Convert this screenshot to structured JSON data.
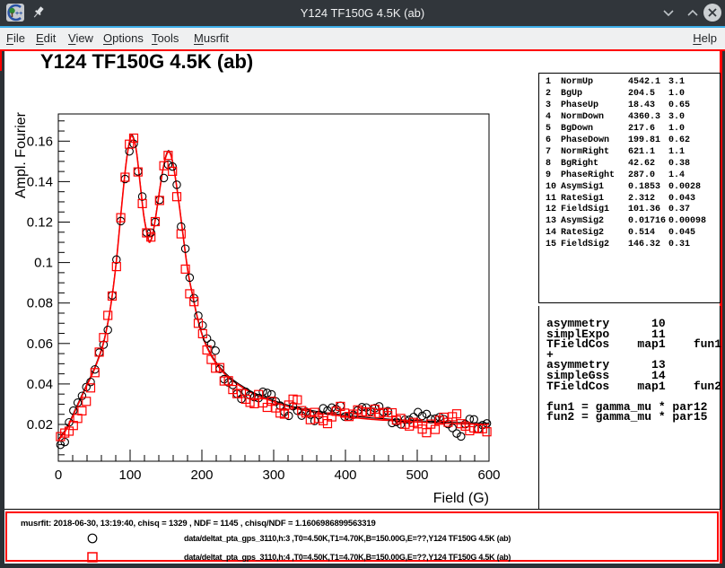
{
  "window": {
    "title": "Y124 TF150G 4.5K (ab)"
  },
  "menu": {
    "items": [
      "File",
      "Edit",
      "View",
      "Options",
      "Tools",
      "Musrfit"
    ],
    "right_item": "Help"
  },
  "plot": {
    "title": "Y124 TF150G 4.5K (ab)",
    "xlabel": "Field (G)",
    "ylabel": "Ampl. Fourier"
  },
  "chart_data": {
    "type": "scatter",
    "title": "Y124 TF150G 4.5K (ab)",
    "xlabel": "Field (G)",
    "ylabel": "Ampl. Fourier",
    "xlim": [
      0,
      600
    ],
    "ylim": [
      0.0016,
      0.1734
    ],
    "x_ticks": [
      0,
      100,
      200,
      300,
      400,
      500,
      600
    ],
    "y_ticks": [
      0.02,
      0.04,
      0.06,
      0.08,
      0.1,
      0.12,
      0.14,
      0.16
    ],
    "x_minor_step": 20,
    "y_minor_step": 0.005,
    "grid": false,
    "fit_color": "#ff0000",
    "fit_curve": [
      [
        0,
        0.012
      ],
      [
        12,
        0.018
      ],
      [
        25,
        0.028
      ],
      [
        38,
        0.038
      ],
      [
        50,
        0.047
      ],
      [
        62,
        0.059
      ],
      [
        70,
        0.072
      ],
      [
        75,
        0.0834
      ],
      [
        81,
        0.1011
      ],
      [
        87,
        0.1233
      ],
      [
        94,
        0.1477
      ],
      [
        100,
        0.161
      ],
      [
        104,
        0.1619
      ],
      [
        109,
        0.1544
      ],
      [
        114,
        0.1388
      ],
      [
        119,
        0.1233
      ],
      [
        124,
        0.1136
      ],
      [
        127,
        0.11
      ],
      [
        131,
        0.1131
      ],
      [
        136,
        0.1233
      ],
      [
        141,
        0.1353
      ],
      [
        146,
        0.1464
      ],
      [
        151,
        0.1535
      ],
      [
        155,
        0.1544
      ],
      [
        159,
        0.15
      ],
      [
        164,
        0.1397
      ],
      [
        169,
        0.1269
      ],
      [
        175,
        0.11
      ],
      [
        181,
        0.0945
      ],
      [
        188,
        0.0821
      ],
      [
        194,
        0.0723
      ],
      [
        201,
        0.0635
      ],
      [
        210,
        0.0559
      ],
      [
        219,
        0.0506
      ],
      [
        231,
        0.0453
      ],
      [
        244,
        0.0413
      ],
      [
        259,
        0.0377
      ],
      [
        275,
        0.0346
      ],
      [
        294,
        0.032
      ],
      [
        316,
        0.0293
      ],
      [
        341,
        0.0271
      ],
      [
        369,
        0.0253
      ],
      [
        400,
        0.024
      ],
      [
        431,
        0.0227
      ],
      [
        469,
        0.0218
      ],
      [
        506,
        0.0211
      ],
      [
        550,
        0.0204
      ],
      [
        600,
        0.02
      ]
    ],
    "series": [
      {
        "name": "data/deltat_pta_gps_3110,h:3",
        "marker": "circle",
        "color": "#000000",
        "seed": 7
      },
      {
        "name": "data/deltat_pta_gps_3110,h:4",
        "marker": "square",
        "color": "#ff0000",
        "seed": 13
      }
    ],
    "scatter_gen": {
      "start": 3,
      "end": 600,
      "step": 6,
      "noise_base": 0.0035,
      "noise_rel": 0.012,
      "ar": 0.55
    }
  },
  "param_table": {
    "rows": [
      [
        "1",
        "NormUp",
        "4542.1",
        "3.1"
      ],
      [
        "2",
        "BgUp",
        "204.5",
        "1.0"
      ],
      [
        "3",
        "PhaseUp",
        "18.43",
        "0.65"
      ],
      [
        "4",
        "NormDown",
        "4360.3",
        "3.0"
      ],
      [
        "5",
        "BgDown",
        "217.6",
        "1.0"
      ],
      [
        "6",
        "PhaseDown",
        "199.81",
        "0.62"
      ],
      [
        "7",
        "NormRight",
        "621.1",
        "1.1"
      ],
      [
        "8",
        "BgRight",
        "42.62",
        "0.38"
      ],
      [
        "9",
        "PhaseRight",
        "287.0",
        "1.4"
      ],
      [
        "10",
        "AsymSig1",
        "0.1853",
        "0.0028"
      ],
      [
        "11",
        "RateSig1",
        "2.312",
        "0.043"
      ],
      [
        "12",
        "FieldSig1",
        "101.36",
        "0.37"
      ],
      [
        "13",
        "AsymSig2",
        "0.01716",
        "0.00098"
      ],
      [
        "14",
        "RateSig2",
        "0.514",
        "0.045"
      ],
      [
        "15",
        "FieldSig2",
        "146.32",
        "0.31"
      ]
    ]
  },
  "theory_box": {
    "lines": [
      "asymmetry      10",
      "simplExpo      11",
      "TFieldCos    map1    fun1",
      "+",
      "asymmetry      13",
      "simpleGss      14",
      "TFieldCos    map1    fun2",
      "",
      "fun1 = gamma_mu * par12",
      "fun2 = gamma_mu * par15"
    ]
  },
  "footer": {
    "info_line": "musrfit: 2018-06-30, 13:19:40, chisq = 1329 , NDF = 1145 , chisq/NDF = 1.1606986899563319",
    "legend": [
      {
        "marker": "circle",
        "color": "#000000",
        "label": "data/deltat_pta_gps_3110,h:3 ,T0=4.50K,T1=4.70K,B=150.00G,E=??,Y124 TF150G 4.5K (ab)"
      },
      {
        "marker": "square",
        "color": "#ff0000",
        "label": "data/deltat_pta_gps_3110,h:4 ,T0=4.50K,T1=4.70K,B=150.00G,E=??,Y124 TF150G 4.5K (ab)"
      }
    ]
  },
  "colors": {
    "accent": "#3daee9",
    "fit": "#ff0000",
    "titlebar": "#31363b",
    "menubar": "#eff0f1",
    "frame_dark": "#2c3136"
  }
}
